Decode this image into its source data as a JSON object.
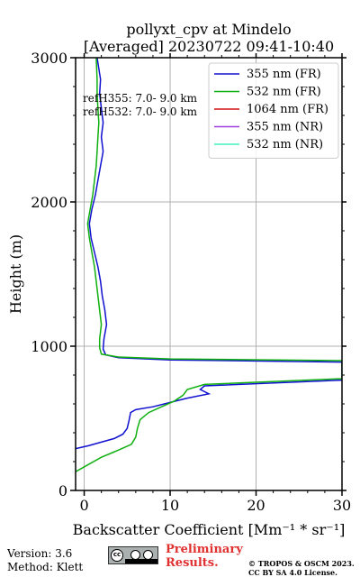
{
  "chart_data": {
    "type": "line",
    "title": "pollyxt_cpv at Mindelo",
    "subtitle": "[Averaged] 20230722 09:41-10:40",
    "xlabel": "Backscatter Coefficient [Mm⁻¹ * sr⁻¹]",
    "ylabel": "Height (m)",
    "xlim": [
      -1,
      30
    ],
    "ylim": [
      0,
      3000
    ],
    "xticks": [
      0,
      10,
      20,
      30
    ],
    "yticks": [
      0,
      1000,
      2000,
      3000
    ],
    "grid": true,
    "legend_position": "top-right",
    "annotations": [
      "refH355:  7.0- 9.0 km",
      "refH532:  7.0- 9.0 km"
    ],
    "series": [
      {
        "name": "355 nm (FR)",
        "color": "#1010d0",
        "points": [
          [
            -1.0,
            290
          ],
          [
            0.5,
            310
          ],
          [
            2,
            335
          ],
          [
            3.5,
            360
          ],
          [
            4.5,
            390
          ],
          [
            5,
            430
          ],
          [
            5.2,
            480
          ],
          [
            5.4,
            540
          ],
          [
            6,
            560
          ],
          [
            8,
            580
          ],
          [
            10,
            610
          ],
          [
            12,
            640
          ],
          [
            14.5,
            670
          ],
          [
            13.5,
            700
          ],
          [
            14,
            725
          ],
          [
            30,
            765
          ],
          [
            30,
            890
          ],
          [
            10,
            905
          ],
          [
            4,
            920
          ],
          [
            2.5,
            940
          ],
          [
            2.2,
            980
          ],
          [
            2.3,
            1050
          ],
          [
            2.6,
            1150
          ],
          [
            2.4,
            1250
          ],
          [
            2.1,
            1350
          ],
          [
            1.9,
            1450
          ],
          [
            1.6,
            1550
          ],
          [
            1.2,
            1650
          ],
          [
            0.8,
            1750
          ],
          [
            0.6,
            1850
          ],
          [
            0.9,
            1950
          ],
          [
            1.3,
            2050
          ],
          [
            1.6,
            2150
          ],
          [
            1.9,
            2250
          ],
          [
            2.2,
            2350
          ],
          [
            2.0,
            2450
          ],
          [
            2.2,
            2550
          ],
          [
            2.0,
            2650
          ],
          [
            1.8,
            2750
          ],
          [
            1.9,
            2850
          ],
          [
            1.5,
            3000
          ]
        ]
      },
      {
        "name": "532 nm (FR)",
        "color": "#10b010",
        "points": [
          [
            -1.0,
            130
          ],
          [
            0.5,
            180
          ],
          [
            2,
            230
          ],
          [
            4,
            280
          ],
          [
            5.5,
            320
          ],
          [
            6,
            370
          ],
          [
            6.2,
            430
          ],
          [
            6.5,
            490
          ],
          [
            7.5,
            540
          ],
          [
            9,
            580
          ],
          [
            10.5,
            620
          ],
          [
            11.5,
            660
          ],
          [
            12,
            700
          ],
          [
            14,
            735
          ],
          [
            30,
            775
          ],
          [
            30,
            900
          ],
          [
            10,
            912
          ],
          [
            4,
            925
          ],
          [
            2.0,
            945
          ],
          [
            1.8,
            990
          ],
          [
            1.8,
            1050
          ],
          [
            2.0,
            1150
          ],
          [
            1.8,
            1250
          ],
          [
            1.6,
            1350
          ],
          [
            1.4,
            1450
          ],
          [
            1.2,
            1550
          ],
          [
            0.9,
            1650
          ],
          [
            0.6,
            1750
          ],
          [
            0.4,
            1850
          ],
          [
            0.7,
            1950
          ],
          [
            1.0,
            2050
          ],
          [
            1.2,
            2150
          ],
          [
            1.4,
            2250
          ],
          [
            1.5,
            2350
          ],
          [
            1.6,
            2450
          ],
          [
            1.7,
            2550
          ],
          [
            1.6,
            2650
          ],
          [
            1.5,
            2750
          ],
          [
            1.5,
            2850
          ],
          [
            1.4,
            3000
          ]
        ]
      },
      {
        "name": "1064 nm (FR)",
        "color": "#d01010",
        "points": []
      },
      {
        "name": "355 nm (NR)",
        "color": "#a040e0",
        "points": []
      },
      {
        "name": "532 nm (NR)",
        "color": "#40f0c0",
        "points": []
      }
    ]
  },
  "footer": {
    "version": "Version: 3.6",
    "method": "Method: Klett",
    "preliminary_line1": "Preliminary",
    "preliminary_line2": "Results.",
    "copyright_line1": "© TROPOS & OSCM 2023.",
    "copyright_line2": "CC BY SA 4.0 License.",
    "license_badge": "cc"
  }
}
